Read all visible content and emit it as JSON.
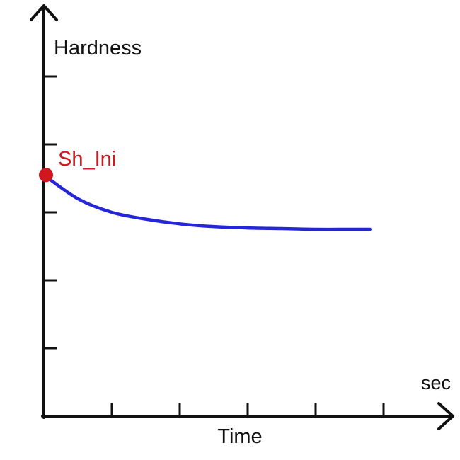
{
  "chart_data": {
    "type": "line",
    "ylabel": "Hardness",
    "xlabel": "Time",
    "x_unit": "sec",
    "xlim": [
      0,
      6
    ],
    "ylim": [
      0,
      6
    ],
    "x_ticks": [
      1,
      2,
      3,
      4,
      5
    ],
    "y_ticks": [
      1,
      2,
      3,
      4,
      5
    ],
    "grid": false,
    "series": [
      {
        "color": "#2626d9",
        "x": [
          0,
          0.5,
          1,
          1.5,
          2,
          2.5,
          3,
          3.5,
          4,
          4.5,
          4.8
        ],
        "y": [
          3.55,
          3.2,
          3.0,
          2.9,
          2.83,
          2.79,
          2.77,
          2.76,
          2.75,
          2.75,
          2.75
        ]
      }
    ],
    "annotations": [
      {
        "text": "Sh_Ini",
        "x": 0,
        "y": 3.55,
        "color": "#d0161e"
      }
    ]
  }
}
